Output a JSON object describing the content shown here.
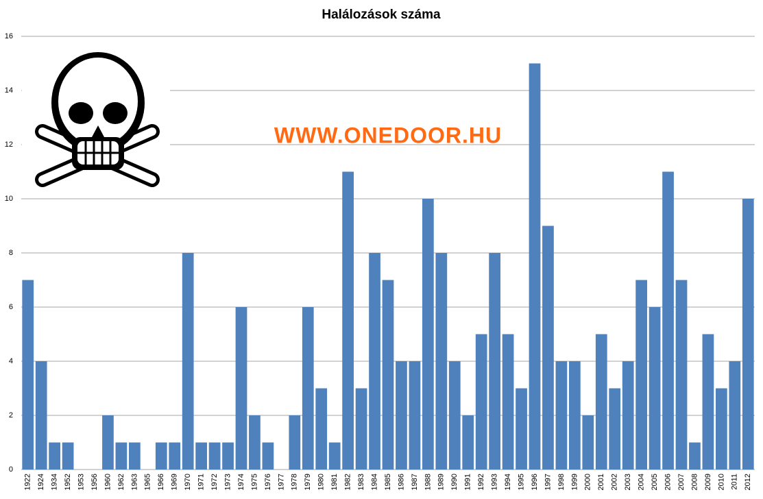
{
  "chart_data": {
    "type": "bar",
    "title": "Halálozások száma",
    "watermark": "WWW.ONEDOOR.HU",
    "categories": [
      "1922",
      "1924",
      "1934",
      "1952",
      "1953",
      "1956",
      "1960",
      "1962",
      "1963",
      "1965",
      "1966",
      "1969",
      "1970",
      "1971",
      "1972",
      "1973",
      "1974",
      "1975",
      "1976",
      "1977",
      "1978",
      "1979",
      "1980",
      "1981",
      "1982",
      "1983",
      "1984",
      "1985",
      "1986",
      "1987",
      "1988",
      "1989",
      "1990",
      "1991",
      "1992",
      "1993",
      "1994",
      "1995",
      "1996",
      "1997",
      "1998",
      "1999",
      "2000",
      "2001",
      "2002",
      "2003",
      "2004",
      "2005",
      "2006",
      "2007",
      "2008",
      "2009",
      "2010",
      "2011",
      "2012"
    ],
    "values": [
      7,
      4,
      1,
      1,
      0,
      0,
      2,
      1,
      1,
      0,
      1,
      1,
      8,
      1,
      1,
      1,
      6,
      2,
      1,
      0,
      2,
      6,
      3,
      1,
      11,
      3,
      8,
      7,
      4,
      4,
      10,
      8,
      4,
      2,
      5,
      8,
      5,
      3,
      15,
      9,
      4,
      4,
      2,
      5,
      3,
      4,
      7,
      6,
      11,
      7,
      1,
      5,
      3,
      4,
      10
    ],
    "color": "#4f81bd",
    "ylim": [
      0,
      16
    ],
    "yticks": [
      0,
      2,
      4,
      6,
      8,
      10,
      12,
      14,
      16
    ],
    "grid": true
  }
}
